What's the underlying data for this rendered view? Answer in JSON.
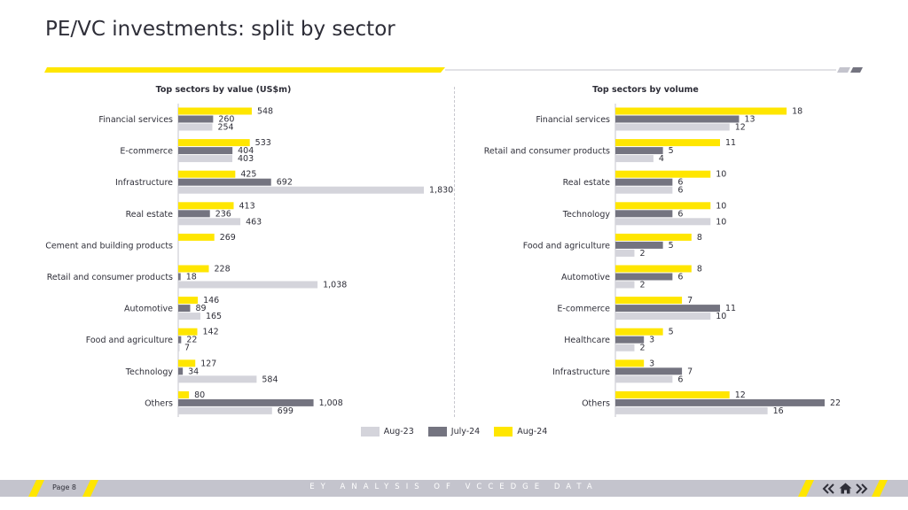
{
  "page": {
    "title": "PE/VC investments: split by sector",
    "footer_page_label": "Page 8",
    "footer_text": "EY ANALYSIS OF VCCEDGE DATA"
  },
  "colors": {
    "aug23": "#d4d4db",
    "jul24": "#747480",
    "aug24": "#ffe600",
    "text": "#2e2e38",
    "footer_bar": "#c4c4cd"
  },
  "icons": {
    "nav_back": "double-chevron-left-icon",
    "nav_home": "home-icon",
    "nav_forward": "double-chevron-right-icon"
  },
  "legend": [
    {
      "label": "Aug-23",
      "color": "#d4d4db"
    },
    {
      "label": "July-24",
      "color": "#747480"
    },
    {
      "label": "Aug-24",
      "color": "#ffe600"
    }
  ],
  "chart_data": [
    {
      "type": "bar",
      "orientation": "horizontal",
      "title": "Top sectors by value (US$m)",
      "categories": [
        "Financial services",
        "E-commerce",
        "Infrastructure",
        "Real estate",
        "Cement and building products",
        "Retail and consumer products",
        "Automotive",
        "Food and agriculture",
        "Technology",
        "Others"
      ],
      "series": [
        {
          "name": "Aug-24",
          "values": [
            548,
            533,
            425,
            413,
            269,
            228,
            146,
            142,
            127,
            80
          ]
        },
        {
          "name": "July-24",
          "values": [
            260,
            404,
            692,
            236,
            null,
            18,
            89,
            22,
            34,
            1008
          ]
        },
        {
          "name": "Aug-23",
          "values": [
            254,
            403,
            1830,
            463,
            null,
            1038,
            165,
            7,
            584,
            699
          ]
        }
      ],
      "labels": [
        [
          "548",
          "260",
          "254"
        ],
        [
          "533",
          "404",
          "403"
        ],
        [
          "425",
          "692",
          "1,830"
        ],
        [
          "413",
          "236",
          "463"
        ],
        [
          "269",
          "",
          ""
        ],
        [
          "228",
          "18",
          "1,038"
        ],
        [
          "146",
          "89",
          "165"
        ],
        [
          "142",
          "22",
          "7"
        ],
        [
          "127",
          "34",
          "584"
        ],
        [
          "80",
          "1,008",
          "699"
        ]
      ],
      "xlim": [
        0,
        1830
      ],
      "grid": false,
      "legend": "bottom"
    },
    {
      "type": "bar",
      "orientation": "horizontal",
      "title": "Top sectors by volume",
      "categories": [
        "Financial services",
        "Retail and consumer products",
        "Real estate",
        "Technology",
        "Food and agriculture",
        "Automotive",
        "E-commerce",
        "Healthcare",
        "Infrastructure",
        "Others"
      ],
      "series": [
        {
          "name": "Aug-24",
          "values": [
            18,
            11,
            10,
            10,
            8,
            8,
            7,
            5,
            3,
            12
          ]
        },
        {
          "name": "July-24",
          "values": [
            13,
            5,
            6,
            6,
            5,
            6,
            11,
            3,
            7,
            22
          ]
        },
        {
          "name": "Aug-23",
          "values": [
            12,
            4,
            6,
            10,
            2,
            2,
            10,
            2,
            6,
            16
          ]
        }
      ],
      "labels": [
        [
          "18",
          "13",
          "12"
        ],
        [
          "11",
          "5",
          "4"
        ],
        [
          "10",
          "6",
          "6"
        ],
        [
          "10",
          "6",
          "10"
        ],
        [
          "8",
          "5",
          "2"
        ],
        [
          "8",
          "6",
          "2"
        ],
        [
          "7",
          "11",
          "10"
        ],
        [
          "5",
          "3",
          "2"
        ],
        [
          "3",
          "7",
          "6"
        ],
        [
          "12",
          "22",
          "16"
        ]
      ],
      "xlim": [
        0,
        22
      ],
      "grid": false,
      "legend": "bottom"
    }
  ]
}
